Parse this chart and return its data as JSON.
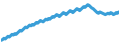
{
  "values": [
    82,
    83,
    85,
    84,
    86,
    88,
    87,
    89,
    91,
    90,
    92,
    91,
    93,
    95,
    97,
    96,
    98,
    100,
    102,
    101,
    103,
    105,
    104,
    106,
    105,
    107,
    109,
    108,
    110,
    112,
    111,
    110,
    112,
    114,
    113,
    115,
    114,
    116,
    118,
    117,
    119,
    121,
    120,
    118,
    120,
    122,
    124,
    123,
    121,
    123,
    125,
    127,
    126,
    124,
    126,
    128,
    130,
    129,
    127,
    129,
    131,
    133,
    132,
    134,
    136,
    135,
    133,
    131,
    130,
    128,
    126,
    124,
    123,
    125,
    124,
    123,
    122,
    121,
    122,
    123,
    122,
    124,
    123,
    121,
    122,
    124,
    123,
    125
  ],
  "line_color": "#3a9fd8",
  "background_color": "#ffffff",
  "linewidth": 2.2
}
